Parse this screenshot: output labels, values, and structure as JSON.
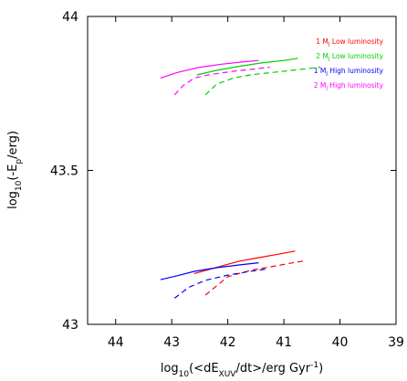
{
  "chart_data": {
    "type": "line",
    "title": "",
    "xlabel": {
      "parts": [
        {
          "t": "log",
          "s": "n"
        },
        {
          "t": "10",
          "s": "sub"
        },
        {
          "t": "(<dE",
          "s": "n"
        },
        {
          "t": "XUV",
          "s": "sub"
        },
        {
          "t": "/dt>/erg Gyr",
          "s": "n"
        },
        {
          "t": "-1",
          "s": "sup"
        },
        {
          "t": ")",
          "s": "n"
        }
      ]
    },
    "ylabel": {
      "parts": [
        {
          "t": "log",
          "s": "n"
        },
        {
          "t": "10",
          "s": "sub"
        },
        {
          "t": "(-E",
          "s": "n"
        },
        {
          "t": "p",
          "s": "sub"
        },
        {
          "t": "/erg)",
          "s": "n"
        }
      ]
    },
    "xlim": [
      44.5,
      39
    ],
    "ylim": [
      43,
      44
    ],
    "x_reversed": true,
    "x_ticks": [
      44,
      43,
      42,
      41,
      40,
      39
    ],
    "x_tick_labels": [
      "44",
      "43",
      "42",
      "41",
      "40",
      "39"
    ],
    "y_ticks": [
      43,
      43.5,
      44
    ],
    "y_tick_labels": [
      "43",
      "43.5",
      "44"
    ],
    "grid": false,
    "legend_position": "top-right",
    "legend": [
      {
        "pre": "1 M",
        "sub": "J",
        "post": " Low luminosity",
        "color": "#ff0000"
      },
      {
        "pre": "2 M",
        "sub": "J",
        "post": " Low luminosity",
        "color": "#00d000"
      },
      {
        "pre": "1 M",
        "sub": "J",
        "post": " High luminosity",
        "color": "#0000ff"
      },
      {
        "pre": "2 M",
        "sub": "J",
        "post": " High luminosity",
        "color": "#ff00ff"
      }
    ],
    "series": [
      {
        "planet": "1 MJ",
        "luminosity": "Low luminosity",
        "style": "solid",
        "color": "#ff0000",
        "x": [
          42.6,
          42.2,
          41.8,
          41.4,
          41.1,
          40.8
        ],
        "y": [
          43.165,
          43.185,
          43.205,
          43.218,
          43.228,
          43.238
        ]
      },
      {
        "planet": "1 MJ",
        "luminosity": "Low luminosity",
        "style": "dashed",
        "color": "#ff0000",
        "x": [
          42.4,
          42.0,
          41.6,
          41.2,
          40.9,
          40.6
        ],
        "y": [
          43.095,
          43.155,
          43.175,
          43.188,
          43.198,
          43.207
        ]
      },
      {
        "planet": "2 MJ",
        "luminosity": "Low luminosity",
        "style": "solid",
        "color": "#00d000",
        "x": [
          42.55,
          42.2,
          41.8,
          41.4,
          41.0,
          40.75
        ],
        "y": [
          43.81,
          43.825,
          43.838,
          43.849,
          43.857,
          43.864
        ]
      },
      {
        "planet": "2 MJ",
        "luminosity": "Low luminosity",
        "style": "dashed",
        "color": "#00d000",
        "x": [
          42.4,
          42.2,
          41.9,
          41.6,
          41.2,
          40.8,
          40.35
        ],
        "y": [
          43.745,
          43.78,
          43.8,
          43.81,
          43.818,
          43.826,
          43.835
        ]
      },
      {
        "planet": "1 MJ",
        "luminosity": "High luminosity",
        "style": "solid",
        "color": "#0000ff",
        "x": [
          43.2,
          42.9,
          42.6,
          42.2,
          41.8,
          41.45
        ],
        "y": [
          43.145,
          43.158,
          43.172,
          43.184,
          43.193,
          43.2
        ]
      },
      {
        "planet": "1 MJ",
        "luminosity": "High luminosity",
        "style": "dashed",
        "color": "#0000ff",
        "x": [
          42.95,
          42.7,
          42.4,
          42.0,
          41.6,
          41.3
        ],
        "y": [
          43.085,
          43.12,
          43.143,
          43.16,
          43.172,
          43.18
        ]
      },
      {
        "planet": "2 MJ",
        "luminosity": "High luminosity",
        "style": "solid",
        "color": "#ff00ff",
        "x": [
          43.2,
          42.9,
          42.5,
          42.1,
          41.75,
          41.45
        ],
        "y": [
          43.8,
          43.818,
          43.835,
          43.845,
          43.852,
          43.857
        ]
      },
      {
        "planet": "2 MJ",
        "luminosity": "High luminosity",
        "style": "dashed",
        "color": "#ff00ff",
        "x": [
          42.95,
          42.8,
          42.6,
          42.3,
          41.9,
          41.5,
          41.25
        ],
        "y": [
          43.745,
          43.775,
          43.8,
          43.812,
          43.822,
          43.83,
          43.835
        ]
      }
    ]
  }
}
